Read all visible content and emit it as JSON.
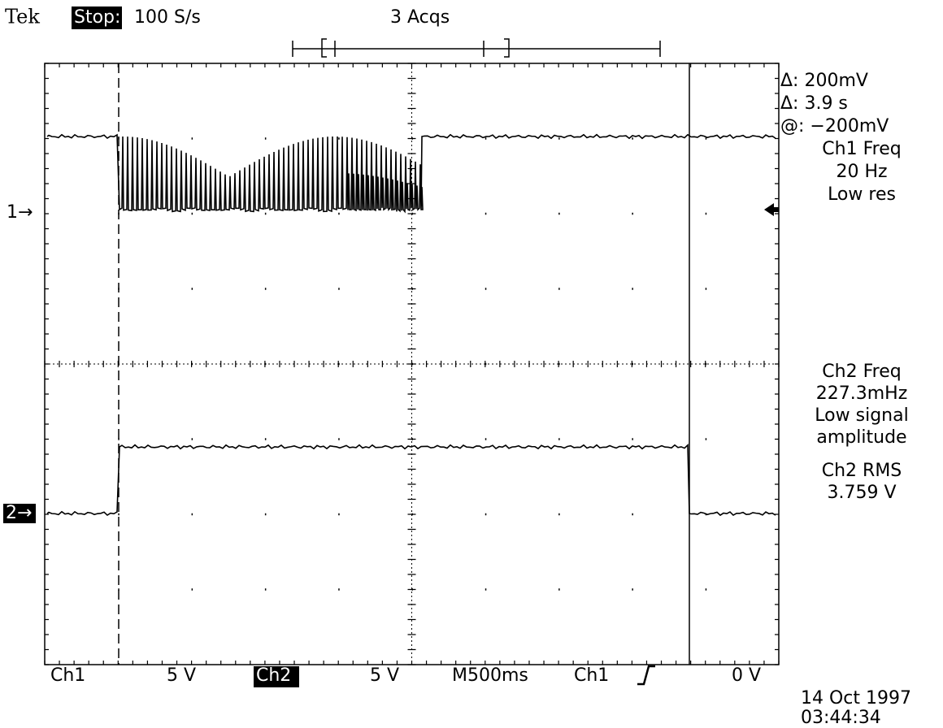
{
  "header": {
    "brand": "Tek",
    "state": "Stop:",
    "rate": "100 S/s",
    "acquisitions": "3 Acqs"
  },
  "readouts": {
    "delta_v": "Δ: 200mV",
    "delta_t": "Δ: 3.9 s",
    "at_v": "@: −200mV",
    "ch1_freq_label": "Ch1 Freq",
    "ch1_freq": "20 Hz",
    "ch1_note": "Low res",
    "ch2_freq_label": "Ch2 Freq",
    "ch2_freq": "227.3mHz",
    "ch2_note_1": "Low signal",
    "ch2_note_2": "amplitude",
    "ch2_rms_label": "Ch2 RMS",
    "ch2_rms": "3.759 V"
  },
  "markers": {
    "ch1": "1→",
    "ch2": "2→"
  },
  "footer": {
    "ch1_label": "Ch1",
    "ch1_scale": "5 V",
    "ch2_label": "Ch2",
    "ch2_scale": "5 V",
    "timebase": "M500ms",
    "trigger_source": "Ch1",
    "trigger_level": "0 V",
    "date": "14 Oct 1997",
    "time": "03:44:34"
  }
}
